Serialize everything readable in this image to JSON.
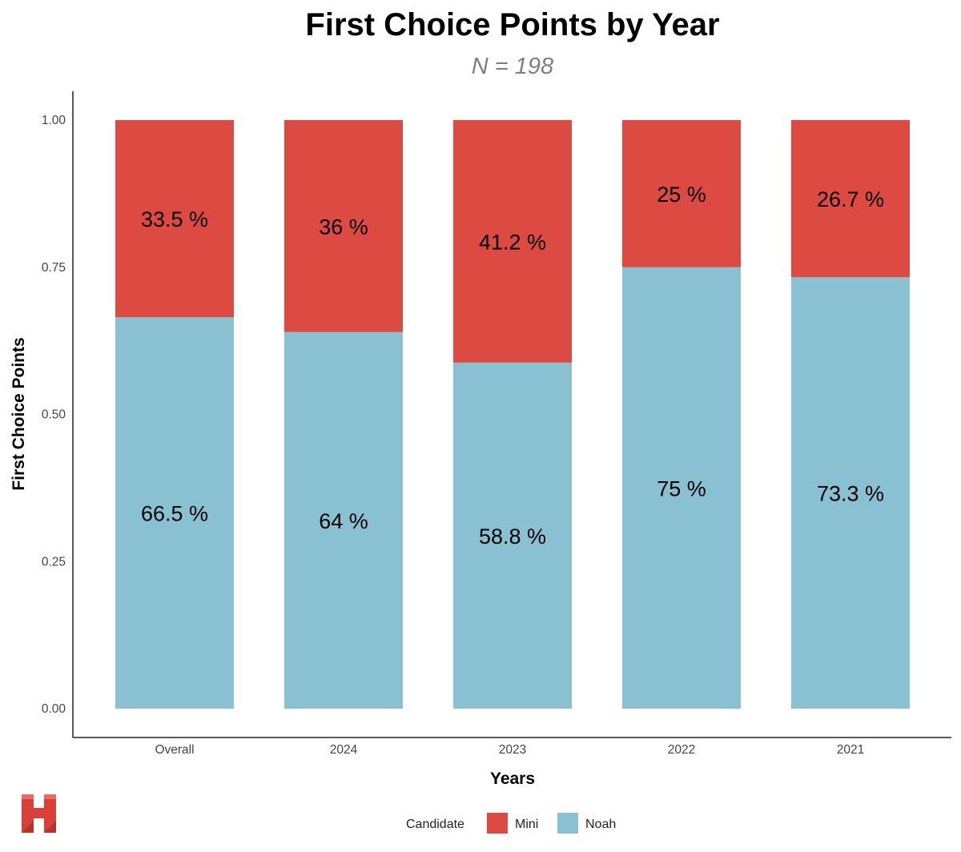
{
  "chart_data": {
    "type": "bar",
    "stacked": true,
    "title": "First Choice Points by Year",
    "subtitle": "N = 198",
    "xlabel": "Years",
    "ylabel": "First Choice Points",
    "ylim": [
      0,
      1
    ],
    "yticks": [
      "0.00",
      "0.25",
      "0.50",
      "0.75",
      "1.00"
    ],
    "categories": [
      "Overall",
      "2024",
      "2023",
      "2022",
      "2021"
    ],
    "series": [
      {
        "name": "Noah",
        "color": "#89C1D2",
        "values": [
          0.665,
          0.64,
          0.588,
          0.75,
          0.733
        ],
        "labels": [
          "66.5 %",
          "64 %",
          "58.8 %",
          "75 %",
          "73.3 %"
        ]
      },
      {
        "name": "Mini",
        "color": "#DC4A41",
        "values": [
          0.335,
          0.36,
          0.412,
          0.25,
          0.267
        ],
        "labels": [
          "33.5 %",
          "36 %",
          "41.2 %",
          "25 %",
          "26.7 %"
        ]
      }
    ],
    "legend": {
      "title": "Candidate",
      "position": "bottom",
      "items": [
        {
          "name": "Mini",
          "color": "#DC4A41"
        },
        {
          "name": "Noah",
          "color": "#89C1D2"
        }
      ]
    }
  },
  "logo": {
    "name": "logo-h-icon",
    "color": "#D9403A"
  }
}
